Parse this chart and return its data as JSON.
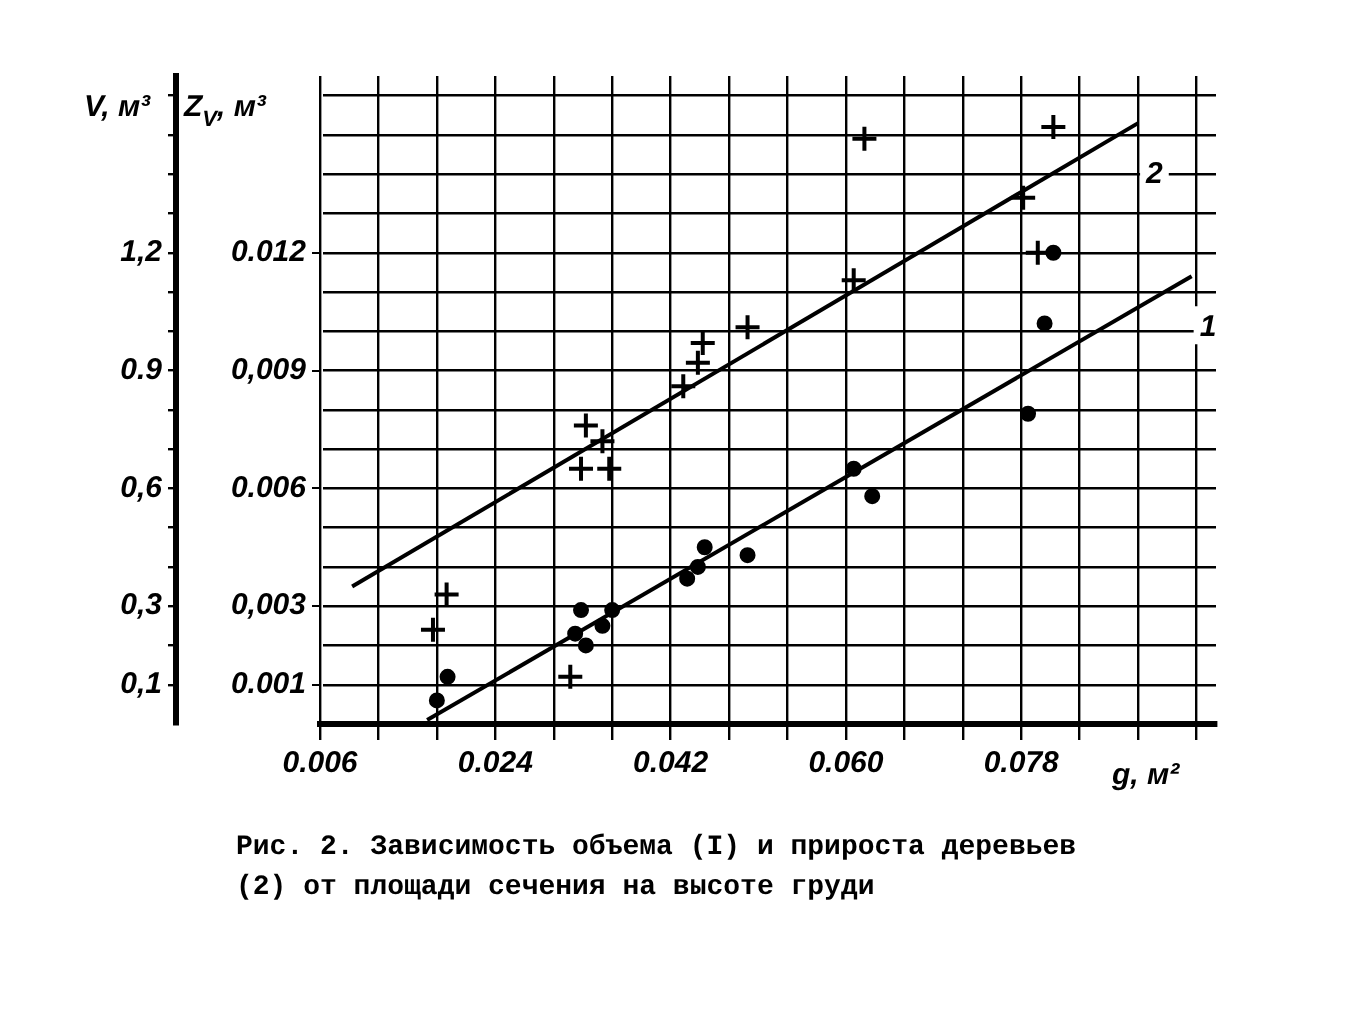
{
  "chart_data": {
    "type": "scatter",
    "xlabel": "g, м²",
    "ylabel": "V, м³",
    "y2label": "Z$_{V}$, м³",
    "annotations": [
      "Рис. 2. Зависимость объема (I) и прироста деревьев (2) от площади сечения на высоте груди",
      "1",
      "2"
    ],
    "xlim": [
      0.006,
      0.098
    ],
    "ylim": [
      0,
      1.65
    ],
    "y2lim": [
      0,
      0.0165
    ],
    "xticks": [
      {
        "value": 0.006,
        "label": "0.006"
      },
      {
        "value": 0.012,
        "label": null
      },
      {
        "value": 0.018,
        "label": null
      },
      {
        "value": 0.024,
        "label": "0.024"
      },
      {
        "value": 0.03,
        "label": null
      },
      {
        "value": 0.036,
        "label": null
      },
      {
        "value": 0.042,
        "label": "0.042"
      },
      {
        "value": 0.048,
        "label": null
      },
      {
        "value": 0.054,
        "label": null
      },
      {
        "value": 0.06,
        "label": "0.060"
      },
      {
        "value": 0.066,
        "label": null
      },
      {
        "value": 0.072,
        "label": null
      },
      {
        "value": 0.078,
        "label": "0.078"
      },
      {
        "value": 0.084,
        "label": null
      },
      {
        "value": 0.09,
        "label": null
      },
      {
        "value": 0.096,
        "label": null
      }
    ],
    "yticks": [
      {
        "value": 0.1,
        "label": "0,1"
      },
      {
        "value": 0.2,
        "label": null
      },
      {
        "value": 0.3,
        "label": "0,3"
      },
      {
        "value": 0.4,
        "label": null
      },
      {
        "value": 0.5,
        "label": null
      },
      {
        "value": 0.6,
        "label": "0,6"
      },
      {
        "value": 0.7,
        "label": null
      },
      {
        "value": 0.8,
        "label": null
      },
      {
        "value": 0.9,
        "label": "0.9"
      },
      {
        "value": 1.0,
        "label": null
      },
      {
        "value": 1.1,
        "label": null
      },
      {
        "value": 1.2,
        "label": "1,2"
      },
      {
        "value": 1.3,
        "label": null
      },
      {
        "value": 1.4,
        "label": null
      },
      {
        "value": 1.5,
        "label": null
      },
      {
        "value": 1.6,
        "label": null
      }
    ],
    "y2ticks": [
      {
        "value": 0.001,
        "label": "0.001"
      },
      {
        "value": 0.003,
        "label": "0,003"
      },
      {
        "value": 0.006,
        "label": "0.006"
      },
      {
        "value": 0.009,
        "label": "0,009"
      },
      {
        "value": 0.012,
        "label": "0.012"
      }
    ],
    "grid": true,
    "legend": false,
    "series": [
      {
        "type": "scatter",
        "marker": "circle",
        "color": "#000000",
        "x": [
          0.018,
          0.0191,
          0.0328,
          0.0322,
          0.0333,
          0.035,
          0.036,
          0.0437,
          0.0448,
          0.0455,
          0.0499,
          0.0608,
          0.0627,
          0.0787,
          0.0804,
          0.0813
        ],
        "values": [
          0.06,
          0.12,
          0.29,
          0.23,
          0.2,
          0.25,
          0.29,
          0.37,
          0.4,
          0.45,
          0.43,
          0.65,
          0.58,
          0.79,
          1.02,
          1.2
        ]
      },
      {
        "type": "scatter",
        "marker": "cross",
        "color": "#000000",
        "axis": "y2",
        "x": [
          0.0176,
          0.019,
          0.0317,
          0.0333,
          0.0328,
          0.0357,
          0.035,
          0.0433,
          0.0453,
          0.0448,
          0.0499,
          0.0608,
          0.0619,
          0.0782,
          0.0813,
          0.0797
        ],
        "values": [
          0.0024,
          0.0033,
          0.0012,
          0.0076,
          0.0065,
          0.0065,
          0.0072,
          0.0086,
          0.0097,
          0.0092,
          0.0101,
          0.0113,
          0.0149,
          0.0134,
          0.0152,
          0.012
        ]
      },
      {
        "type": "line",
        "marker": "none",
        "color": "#000000",
        "x": [
          0.017,
          0.0955
        ],
        "values": [
          0.01,
          1.14
        ]
      },
      {
        "type": "line",
        "marker": "none",
        "color": "#000000",
        "axis": "y2",
        "x": [
          0.0093,
          0.09
        ],
        "values": [
          0.0035,
          0.0153
        ]
      }
    ]
  }
}
